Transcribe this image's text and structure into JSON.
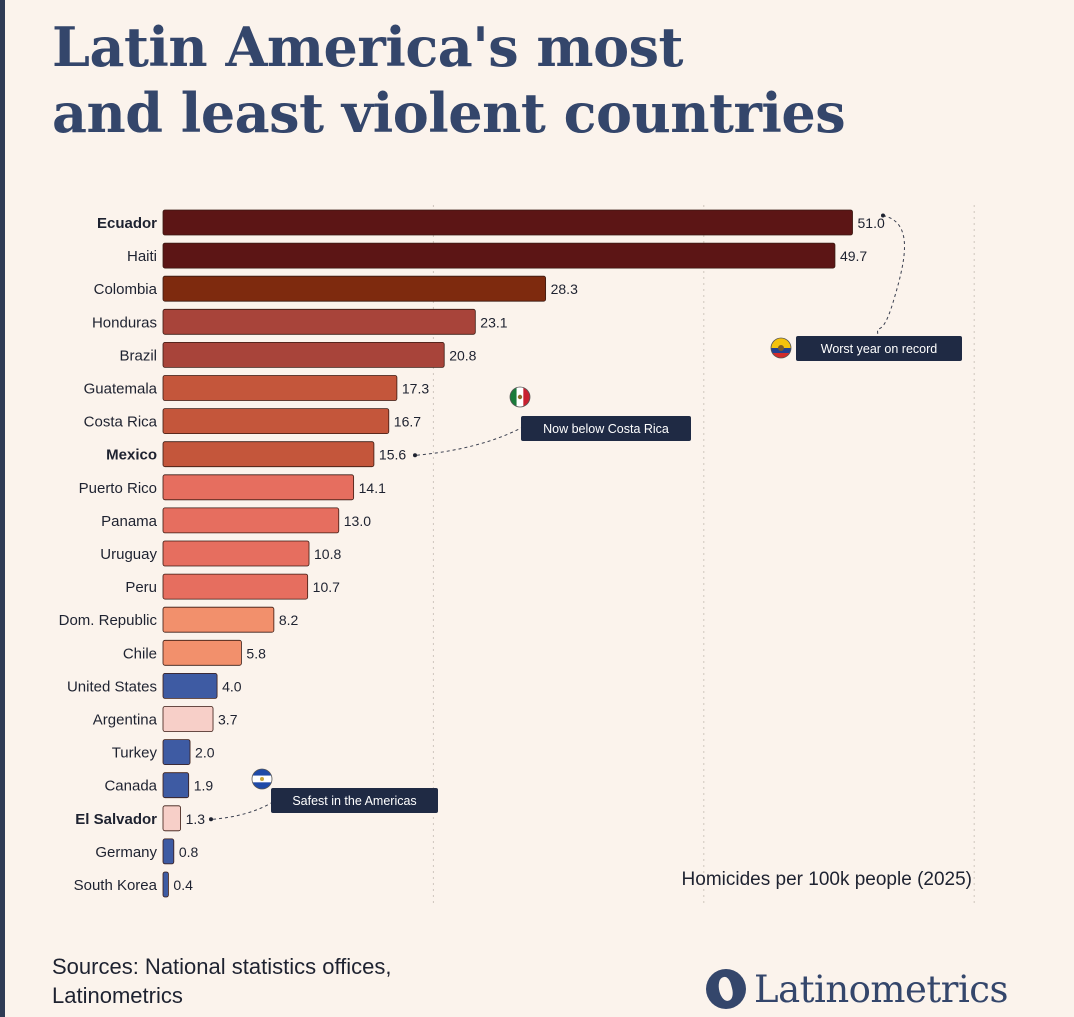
{
  "title": {
    "line1": "Latin America's most",
    "line2": "and least violent countries"
  },
  "chart_data": {
    "type": "bar",
    "orientation": "horizontal",
    "title": "Latin America's most and least violent countries",
    "xlabel": "Homicides per 100k people (2025)",
    "xlim": [
      0,
      60
    ],
    "categories": [
      "Ecuador",
      "Haiti",
      "Colombia",
      "Honduras",
      "Brazil",
      "Guatemala",
      "Costa Rica",
      "Mexico",
      "Puerto Rico",
      "Panama",
      "Uruguay",
      "Peru",
      "Dom. Republic",
      "Chile",
      "United States",
      "Argentina",
      "Turkey",
      "Canada",
      "El Salvador",
      "Germany",
      "South Korea"
    ],
    "values": [
      51.0,
      49.7,
      28.3,
      23.1,
      20.8,
      17.3,
      16.7,
      15.6,
      14.1,
      13.0,
      10.8,
      10.7,
      8.2,
      5.8,
      4.0,
      3.7,
      2.0,
      1.9,
      1.3,
      0.8,
      0.4
    ],
    "value_labels": [
      "51.0",
      "49.7",
      "28.3",
      "23.1",
      "20.8",
      "17.3",
      "16.7",
      "15.6",
      "14.1",
      "13.0",
      "10.8",
      "10.7",
      "8.2",
      "5.8",
      "4.0",
      "3.7",
      "2.0",
      "1.9",
      "1.3",
      "0.8",
      "0.4"
    ],
    "highlighted": [
      "Ecuador",
      "Mexico",
      "El Salvador"
    ],
    "bar_colors": [
      "#5c1515",
      "#5c1515",
      "#7e2a0e",
      "#a8443a",
      "#a8443a",
      "#c4563b",
      "#c4563b",
      "#c4563b",
      "#e66e5f",
      "#e66e5f",
      "#e66e5f",
      "#e66e5f",
      "#f2906c",
      "#f2906c",
      "#3e5ba3",
      "#f7cfc8",
      "#3e5ba3",
      "#3e5ba3",
      "#f7cfc8",
      "#3e5ba3",
      "#3e5ba3"
    ],
    "gridlines_x": [
      20,
      40,
      60
    ],
    "annotations": [
      {
        "target": "Ecuador",
        "text": "Worst year on record",
        "flag": "ecuador-flag-icon"
      },
      {
        "target": "Mexico",
        "text": "Now below Costa Rica",
        "flag": "mexico-flag-icon"
      },
      {
        "target": "El Salvador",
        "text": "Safest in the Americas",
        "flag": "el-salvador-flag-icon"
      }
    ]
  },
  "footer": {
    "sources_line1": "Sources: National statistics offices,",
    "sources_line2": "Latinometrics",
    "logo_text": "Latinometrics",
    "logo_icon": "globe-americas-icon"
  },
  "colors": {
    "background": "#fbf3ec",
    "title": "#34466b",
    "annotation_box": "#1f2a44"
  }
}
